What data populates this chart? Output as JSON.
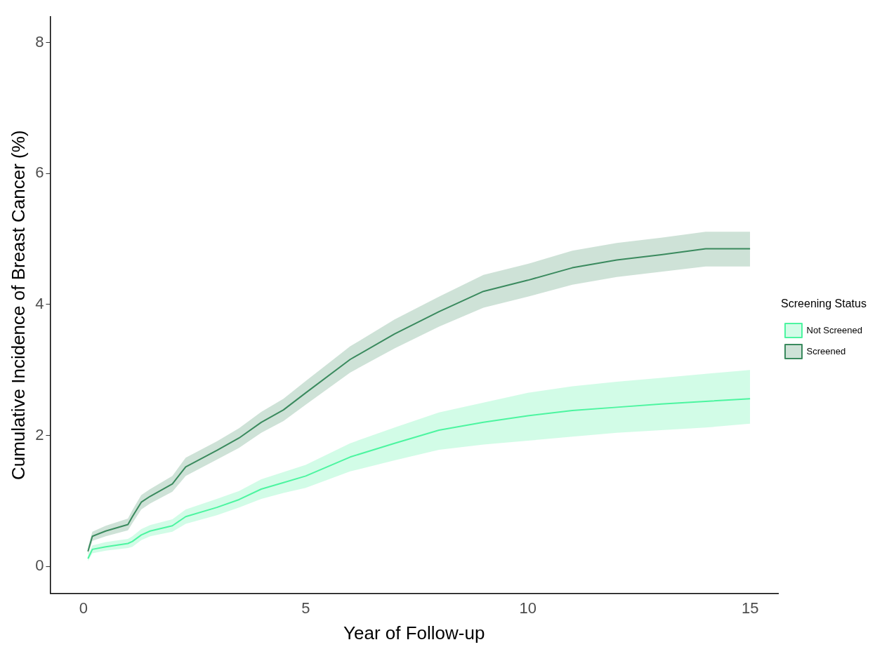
{
  "chart_data": {
    "type": "line",
    "xlabel": "Year of Follow-up",
    "ylabel": "Cumulative Incidence of Breast Cancer (%)",
    "legend_title": "Screening Status",
    "legend": "right",
    "marker": "none",
    "line_style": "solid",
    "x": [
      0.1,
      0.2,
      0.5,
      1.0,
      1.1,
      1.3,
      1.5,
      2,
      2.3,
      3,
      3.5,
      4,
      4.5,
      5,
      6,
      7,
      8,
      9,
      10,
      11,
      12,
      13,
      14,
      15
    ],
    "xlim": [
      -0.75,
      15.63
    ],
    "xticks": [
      0,
      5,
      10,
      15
    ],
    "ylim": [
      -0.41,
      8.39
    ],
    "yticks": [
      0,
      2,
      4,
      6,
      8
    ],
    "series": [
      {
        "name": "Not Screened",
        "color": "#4cf5a0",
        "values": [
          0.12,
          0.26,
          0.3,
          0.35,
          0.38,
          0.48,
          0.54,
          0.62,
          0.76,
          0.9,
          1.02,
          1.18,
          1.28,
          1.38,
          1.67,
          1.88,
          2.08,
          2.2,
          2.3,
          2.38,
          2.43,
          2.48,
          2.52,
          2.56
        ],
        "lower": [
          0.08,
          0.2,
          0.24,
          0.28,
          0.3,
          0.4,
          0.46,
          0.53,
          0.65,
          0.78,
          0.9,
          1.03,
          1.12,
          1.2,
          1.45,
          1.62,
          1.78,
          1.86,
          1.92,
          1.98,
          2.04,
          2.08,
          2.12,
          2.18
        ],
        "upper": [
          0.16,
          0.32,
          0.37,
          0.42,
          0.46,
          0.57,
          0.63,
          0.72,
          0.87,
          1.03,
          1.15,
          1.33,
          1.44,
          1.55,
          1.88,
          2.12,
          2.35,
          2.5,
          2.65,
          2.75,
          2.82,
          2.88,
          2.94,
          3.0
        ]
      },
      {
        "name": "Screened",
        "color": "#3a8a5e",
        "values": [
          0.23,
          0.46,
          0.54,
          0.64,
          0.76,
          0.98,
          1.07,
          1.26,
          1.52,
          1.77,
          1.96,
          2.2,
          2.39,
          2.65,
          3.16,
          3.55,
          3.89,
          4.2,
          4.37,
          4.56,
          4.68,
          4.76,
          4.85,
          4.85
        ],
        "lower": [
          0.17,
          0.39,
          0.46,
          0.55,
          0.66,
          0.87,
          0.96,
          1.14,
          1.38,
          1.63,
          1.81,
          2.04,
          2.22,
          2.47,
          2.96,
          3.33,
          3.66,
          3.95,
          4.12,
          4.3,
          4.42,
          4.5,
          4.58,
          4.58
        ],
        "upper": [
          0.29,
          0.53,
          0.62,
          0.73,
          0.86,
          1.09,
          1.18,
          1.38,
          1.66,
          1.91,
          2.11,
          2.36,
          2.56,
          2.83,
          3.36,
          3.77,
          4.12,
          4.45,
          4.62,
          4.82,
          4.94,
          5.02,
          5.11,
          5.11
        ]
      }
    ]
  }
}
